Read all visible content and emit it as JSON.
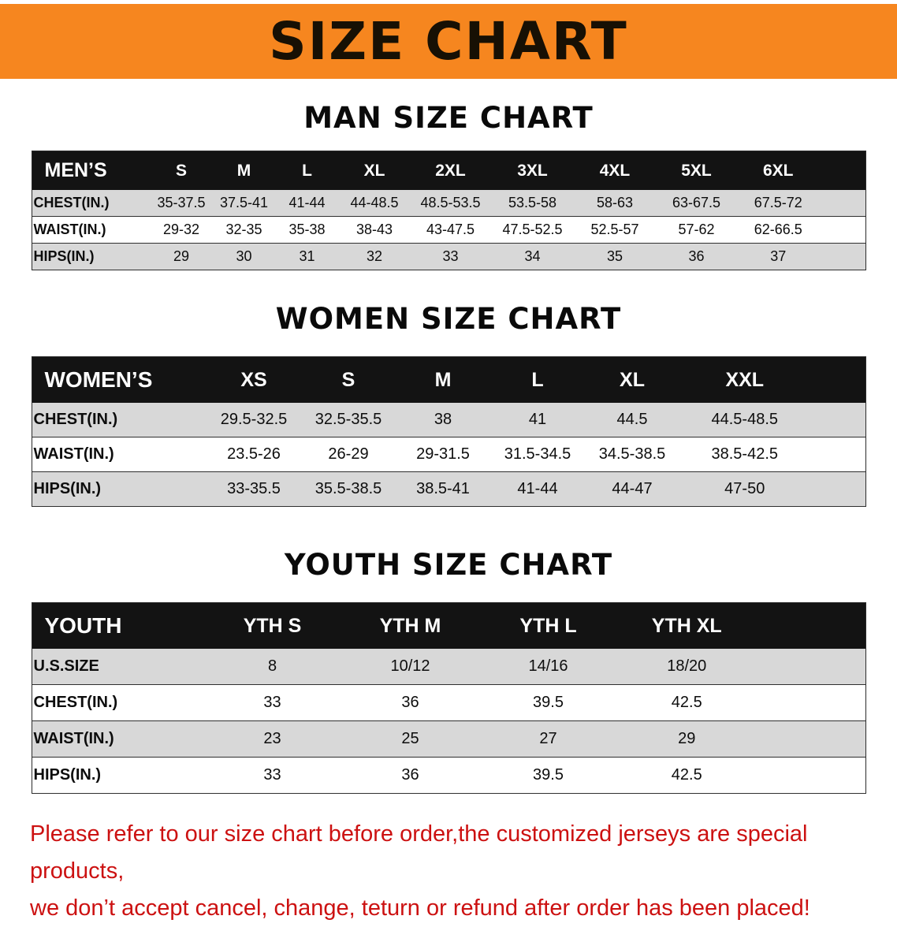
{
  "banner": {
    "title": "SIZE CHART"
  },
  "colors": {
    "banner_orange": "#f6861f",
    "table_header_black": "#131313",
    "row_gray": "#d8d8d8",
    "note_red": "#cc1111"
  },
  "sections": [
    {
      "heading": "MAN SIZE CHART",
      "table": {
        "header": [
          "MEN’S",
          "S",
          "M",
          "L",
          "XL",
          "2XL",
          "3XL",
          "4XL",
          "5XL",
          "6XL"
        ],
        "rows": [
          [
            "CHEST(IN.)",
            "35-37.5",
            "37.5-41",
            "41-44",
            "44-48.5",
            "48.5-53.5",
            "53.5-58",
            "58-63",
            "63-67.5",
            "67.5-72"
          ],
          [
            "WAIST(IN.)",
            "29-32",
            "32-35",
            "35-38",
            "38-43",
            "43-47.5",
            "47.5-52.5",
            "52.5-57",
            "57-62",
            "62-66.5"
          ],
          [
            "HIPS(IN.)",
            "29",
            "30",
            "31",
            "32",
            "33",
            "34",
            "35",
            "36",
            "37"
          ]
        ]
      }
    },
    {
      "heading": "WOMEN SIZE CHART",
      "table": {
        "header": [
          "WOMEN’S",
          "XS",
          "S",
          "M",
          "L",
          "XL",
          "XXL"
        ],
        "rows": [
          [
            "CHEST(IN.)",
            "29.5-32.5",
            "32.5-35.5",
            "38",
            "41",
            "44.5",
            "44.5-48.5"
          ],
          [
            "WAIST(IN.)",
            "23.5-26",
            "26-29",
            "29-31.5",
            "31.5-34.5",
            "34.5-38.5",
            "38.5-42.5"
          ],
          [
            "HIPS(IN.)",
            "33-35.5",
            "35.5-38.5",
            "38.5-41",
            "41-44",
            "44-47",
            "47-50"
          ]
        ]
      }
    },
    {
      "heading": "YOUTH SIZE CHART",
      "table": {
        "header": [
          "YOUTH",
          "YTH S",
          "YTH M",
          "YTH L",
          "YTH XL"
        ],
        "rows": [
          [
            "U.S.SIZE",
            "8",
            "10/12",
            "14/16",
            "18/20"
          ],
          [
            "CHEST(IN.)",
            "33",
            "36",
            "39.5",
            "42.5"
          ],
          [
            "WAIST(IN.)",
            "23",
            "25",
            "27",
            "29"
          ],
          [
            "HIPS(IN.)",
            "33",
            "36",
            "39.5",
            "42.5"
          ]
        ]
      }
    }
  ],
  "note": {
    "line1": "Please refer to our size chart before order,the customized jerseys are special products,",
    "line2": "we don’t accept cancel, change, teturn or refund after order has been placed!"
  }
}
